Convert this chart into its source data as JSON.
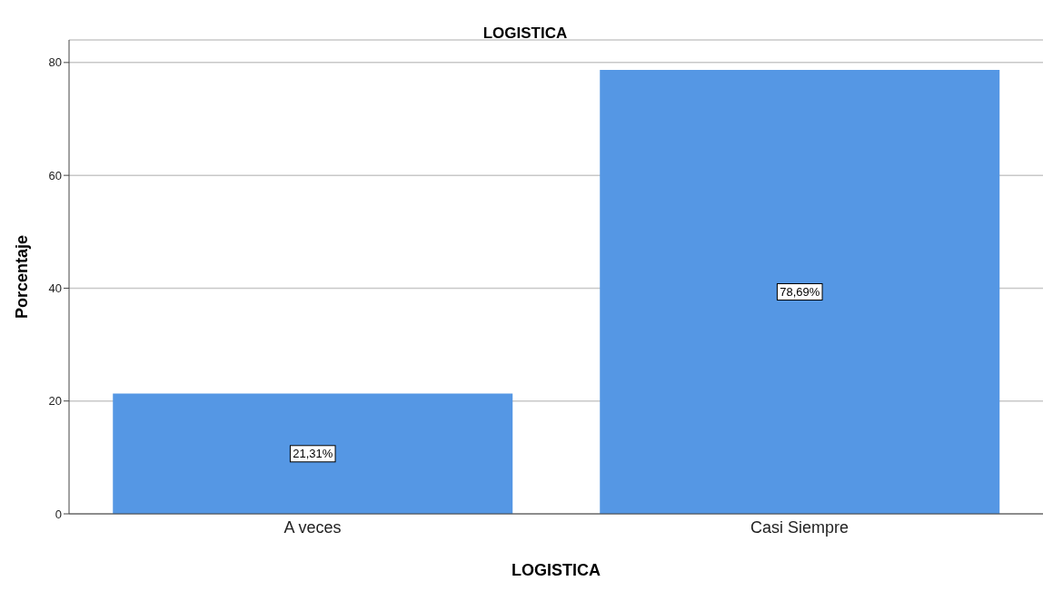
{
  "chart_data": {
    "type": "bar",
    "title": "LOGISTICA",
    "xlabel": "LOGISTICA",
    "ylabel": "Porcentaje",
    "categories": [
      "A veces",
      "Casi Siempre"
    ],
    "values": [
      21.31,
      78.69
    ],
    "value_labels": [
      "21,31%",
      "78,69%"
    ],
    "color": "#5597e4",
    "ylim": [
      0,
      84
    ],
    "yticks": [
      0,
      20,
      40,
      60,
      80
    ],
    "grid": "y"
  }
}
